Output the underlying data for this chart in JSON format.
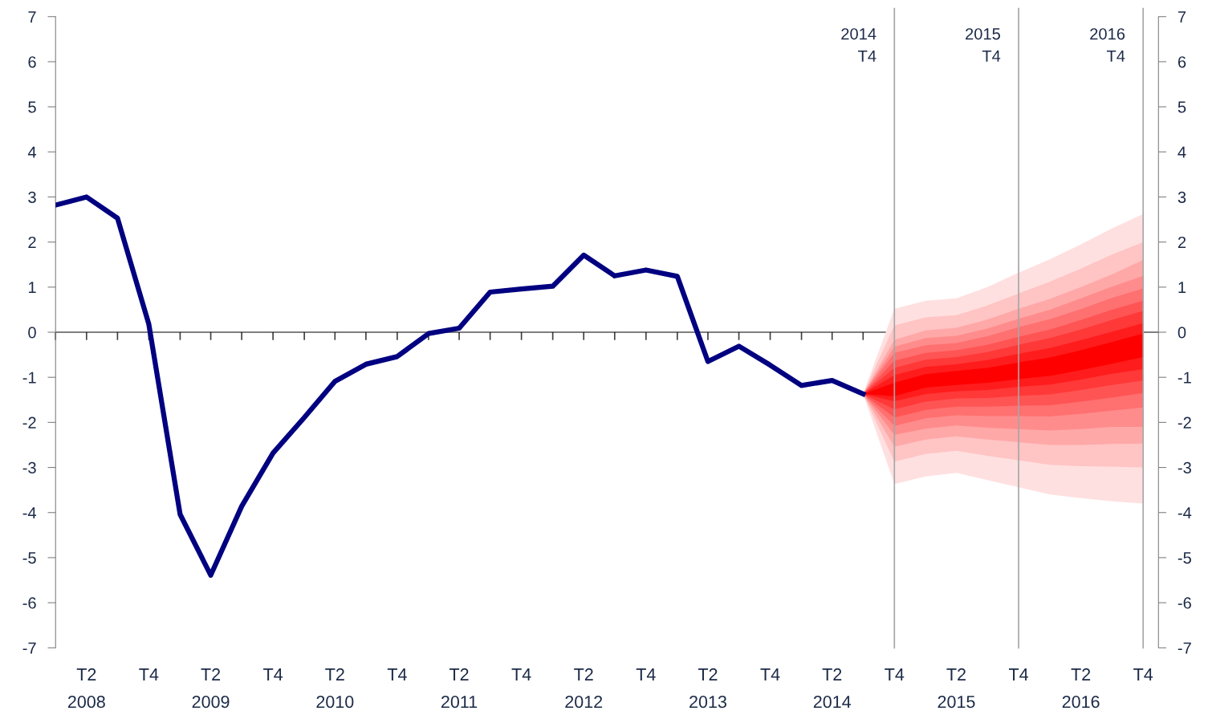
{
  "chart_data": {
    "type": "line",
    "xlim": [
      "2008-01",
      "2016-11-15"
    ],
    "x": [
      "2014-07",
      "2014-10",
      "2015-01",
      "2015-04",
      "2015-07",
      "2015-10",
      "2016-01",
      "2016-04",
      "2016-07",
      "2016-10"
    ],
    "xticks": [
      {
        "value": "2008-01",
        "label": null
      },
      {
        "value": "2008-04",
        "label": "T2\n2008"
      },
      {
        "value": "2008-07",
        "label": null
      },
      {
        "value": "2008-10",
        "label": "T4"
      },
      {
        "value": "2009-01",
        "label": null
      },
      {
        "value": "2009-04",
        "label": "T2\n2009"
      },
      {
        "value": "2009-07",
        "label": null
      },
      {
        "value": "2009-10",
        "label": "T4"
      },
      {
        "value": "2010-01",
        "label": null
      },
      {
        "value": "2010-04",
        "label": "T2\n2010"
      },
      {
        "value": "2010-07",
        "label": null
      },
      {
        "value": "2010-10",
        "label": "T4"
      },
      {
        "value": "2011-01",
        "label": null
      },
      {
        "value": "2011-04",
        "label": "T2\n2011"
      },
      {
        "value": "2011-07",
        "label": null
      },
      {
        "value": "2011-10",
        "label": "T4"
      },
      {
        "value": "2012-01",
        "label": null
      },
      {
        "value": "2012-04",
        "label": "T2\n2012"
      },
      {
        "value": "2012-07",
        "label": null
      },
      {
        "value": "2012-10",
        "label": "T4"
      },
      {
        "value": "2013-01",
        "label": null
      },
      {
        "value": "2013-04",
        "label": "T2\n2013"
      },
      {
        "value": "2013-07",
        "label": null
      },
      {
        "value": "2013-10",
        "label": "T4"
      },
      {
        "value": "2014-01",
        "label": null
      },
      {
        "value": "2014-04",
        "label": "T2\n2014"
      },
      {
        "value": "2014-07",
        "label": null
      },
      {
        "value": "2014-10",
        "label": "T4"
      },
      {
        "value": "2015-01",
        "label": null
      },
      {
        "value": "2015-04",
        "label": "T2\n2015"
      },
      {
        "value": "2015-07",
        "label": null
      },
      {
        "value": "2015-10",
        "label": "T4"
      },
      {
        "value": "2016-01",
        "label": null
      },
      {
        "value": "2016-04",
        "label": "T2\n2016"
      },
      {
        "value": "2016-07",
        "label": null
      },
      {
        "value": "2016-10",
        "label": "T4"
      }
    ],
    "ylim": [
      -7,
      7
    ],
    "yticks": [
      -7,
      -6,
      -5,
      -4,
      -3,
      -2,
      -1,
      0,
      1,
      2,
      3,
      4,
      5,
      6,
      7
    ],
    "y2lim": [
      -7,
      7
    ],
    "y2ticks": [
      -7,
      -6,
      -5,
      -4,
      -3,
      -2,
      -1,
      0,
      1,
      2,
      3,
      4,
      5,
      6,
      7
    ],
    "grid": false,
    "legend": false,
    "ref_lines": [
      {
        "axis": "x",
        "value": "2014-10",
        "label": "2014\nT4",
        "color": "#a6a6a6"
      },
      {
        "axis": "x",
        "value": "2015-10",
        "label": "2015\nT4",
        "color": "#a6a6a6"
      },
      {
        "axis": "x",
        "value": "2016-10",
        "label": "2016\nT4",
        "color": "#a6a6a6"
      }
    ],
    "series": [
      {
        "type": "line",
        "color": "#ffe0e0",
        "values": [
          null,
          null,
          null,
          null,
          null,
          null,
          null,
          null,
          null,
          null
        ],
        "upper": [
          -1.37,
          0.52,
          0.7,
          0.75,
          1.0,
          1.32,
          1.62,
          1.95,
          2.3,
          2.62
        ],
        "lower": [
          -1.37,
          -3.37,
          -3.2,
          -3.12,
          -3.28,
          -3.44,
          -3.6,
          -3.68,
          -3.75,
          -3.8
        ]
      },
      {
        "type": "line",
        "color": "#ffc4c4",
        "values": [
          null,
          null,
          null,
          null,
          null,
          null,
          null,
          null,
          null,
          null
        ],
        "upper": [
          -1.37,
          0.15,
          0.33,
          0.38,
          0.59,
          0.86,
          1.12,
          1.41,
          1.72,
          2.0
        ],
        "lower": [
          -1.37,
          -2.87,
          -2.7,
          -2.63,
          -2.74,
          -2.84,
          -2.94,
          -2.97,
          -2.98,
          -3.0
        ]
      },
      {
        "type": "line",
        "color": "#ffa8a8",
        "values": [
          null,
          null,
          null,
          null,
          null,
          null,
          null,
          null,
          null,
          null
        ],
        "upper": [
          -1.37,
          -0.17,
          0.04,
          0.1,
          0.28,
          0.52,
          0.74,
          1.0,
          1.28,
          1.6
        ],
        "lower": [
          -1.37,
          -2.54,
          -2.38,
          -2.31,
          -2.38,
          -2.44,
          -2.5,
          -2.5,
          -2.48,
          -2.47
        ]
      },
      {
        "type": "line",
        "color": "#ff8c8c",
        "values": [
          null,
          null,
          null,
          null,
          null,
          null,
          null,
          null,
          null,
          null
        ],
        "upper": [
          -1.37,
          -0.32,
          -0.13,
          -0.08,
          0.08,
          0.3,
          0.5,
          0.75,
          1.01,
          1.25
        ],
        "lower": [
          -1.37,
          -2.28,
          -2.14,
          -2.07,
          -2.12,
          -2.15,
          -2.18,
          -2.15,
          -2.1,
          -2.1
        ]
      },
      {
        "type": "line",
        "color": "#ff7070",
        "values": [
          null,
          null,
          null,
          null,
          null,
          null,
          null,
          null,
          null,
          null
        ],
        "upper": [
          -1.37,
          -0.46,
          -0.29,
          -0.24,
          -0.09,
          0.11,
          0.29,
          0.51,
          0.76,
          0.97
        ],
        "lower": [
          -1.37,
          -2.08,
          -1.91,
          -1.84,
          -1.86,
          -1.86,
          -1.87,
          -1.81,
          -1.74,
          -1.67
        ]
      },
      {
        "type": "line",
        "color": "#ff5454",
        "values": [
          null,
          null,
          null,
          null,
          null,
          null,
          null,
          null,
          null,
          null
        ],
        "upper": [
          -1.37,
          -0.63,
          -0.46,
          -0.4,
          -0.28,
          -0.1,
          0.06,
          0.27,
          0.5,
          0.7
        ],
        "lower": [
          -1.37,
          -1.89,
          -1.72,
          -1.65,
          -1.65,
          -1.63,
          -1.62,
          -1.54,
          -1.45,
          -1.35
        ]
      },
      {
        "type": "line",
        "color": "#ff3838",
        "values": [
          null,
          null,
          null,
          null,
          null,
          null,
          null,
          null,
          null,
          null
        ],
        "upper": [
          -1.37,
          -0.79,
          -0.61,
          -0.55,
          -0.44,
          -0.28,
          -0.13,
          0.06,
          0.27,
          0.47
        ],
        "lower": [
          -1.37,
          -1.71,
          -1.54,
          -1.47,
          -1.46,
          -1.41,
          -1.38,
          -1.28,
          -1.17,
          -1.07
        ]
      },
      {
        "type": "line",
        "color": "#ff1c1c",
        "values": [
          null,
          null,
          null,
          null,
          null,
          null,
          null,
          null,
          null,
          null
        ],
        "upper": [
          -1.37,
          -0.95,
          -0.77,
          -0.71,
          -0.62,
          -0.48,
          -0.35,
          -0.18,
          0.01,
          0.2
        ],
        "lower": [
          -1.37,
          -1.53,
          -1.37,
          -1.31,
          -1.28,
          -1.21,
          -1.16,
          -1.05,
          -0.92,
          -0.82
        ]
      },
      {
        "type": "line",
        "color": "#ff0000",
        "values": [
          null,
          null,
          null,
          null,
          null,
          null,
          null,
          null,
          null,
          null
        ],
        "upper": [
          -1.37,
          -1.12,
          -0.93,
          -0.86,
          -0.79,
          -0.67,
          -0.56,
          -0.4,
          -0.22,
          -0.03
        ],
        "lower": [
          -1.37,
          -1.42,
          -1.23,
          -1.17,
          -1.12,
          -1.04,
          -0.97,
          -0.84,
          -0.7,
          -0.55
        ]
      },
      {
        "color": "#000080",
        "line_style": "solid",
        "marker": "none",
        "x": [
          "2008-01",
          "2008-04",
          "2008-07",
          "2008-10",
          "2009-01",
          "2009-04",
          "2009-07",
          "2009-10",
          "2010-01",
          "2010-04",
          "2010-07",
          "2010-10",
          "2011-01",
          "2011-04",
          "2011-07",
          "2011-10",
          "2012-01",
          "2012-04",
          "2012-07",
          "2012-10",
          "2013-01",
          "2013-04",
          "2013-07",
          "2013-10",
          "2014-01",
          "2014-04",
          "2014-07"
        ],
        "values": [
          2.82,
          3.0,
          2.53,
          0.18,
          -4.04,
          -5.39,
          -3.86,
          -2.68,
          -1.89,
          -1.09,
          -0.71,
          -0.54,
          -0.03,
          0.09,
          0.89,
          0.96,
          1.02,
          1.71,
          1.25,
          1.38,
          1.24,
          -0.65,
          -0.31,
          -0.73,
          -1.18,
          -1.07,
          -1.37
        ]
      }
    ]
  }
}
